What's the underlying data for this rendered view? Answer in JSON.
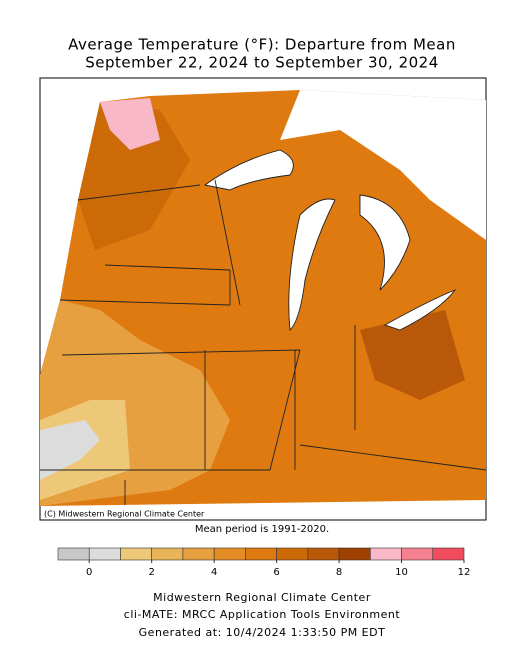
{
  "title": [
    "Average Temperature (°F): Departure from Mean",
    "September 22, 2024 to September 30, 2024"
  ],
  "credit": "(C) Midwestern Regional Climate Center",
  "mean_period": "Mean period is 1991-2020.",
  "legend": {
    "bins": [
      -1,
      0,
      1,
      2,
      3,
      4,
      5,
      6,
      7,
      8,
      9,
      10,
      11,
      12
    ],
    "colors": [
      "#c8c8c8",
      "#dcdcdc",
      "#ecc878",
      "#e8b458",
      "#e6a040",
      "#e48c26",
      "#de7a10",
      "#cc6a08",
      "#b85808",
      "#a04000",
      "#f8b8c8",
      "#f48090",
      "#f04c5c"
    ],
    "ticks": [
      0,
      2,
      4,
      6,
      8,
      10,
      12
    ]
  },
  "footer": [
    "Midwestern Regional Climate Center",
    "cli-MATE: MRCC Application Tools Environment",
    "Generated at: 10/4/2024 1:33:50 PM EDT"
  ]
}
